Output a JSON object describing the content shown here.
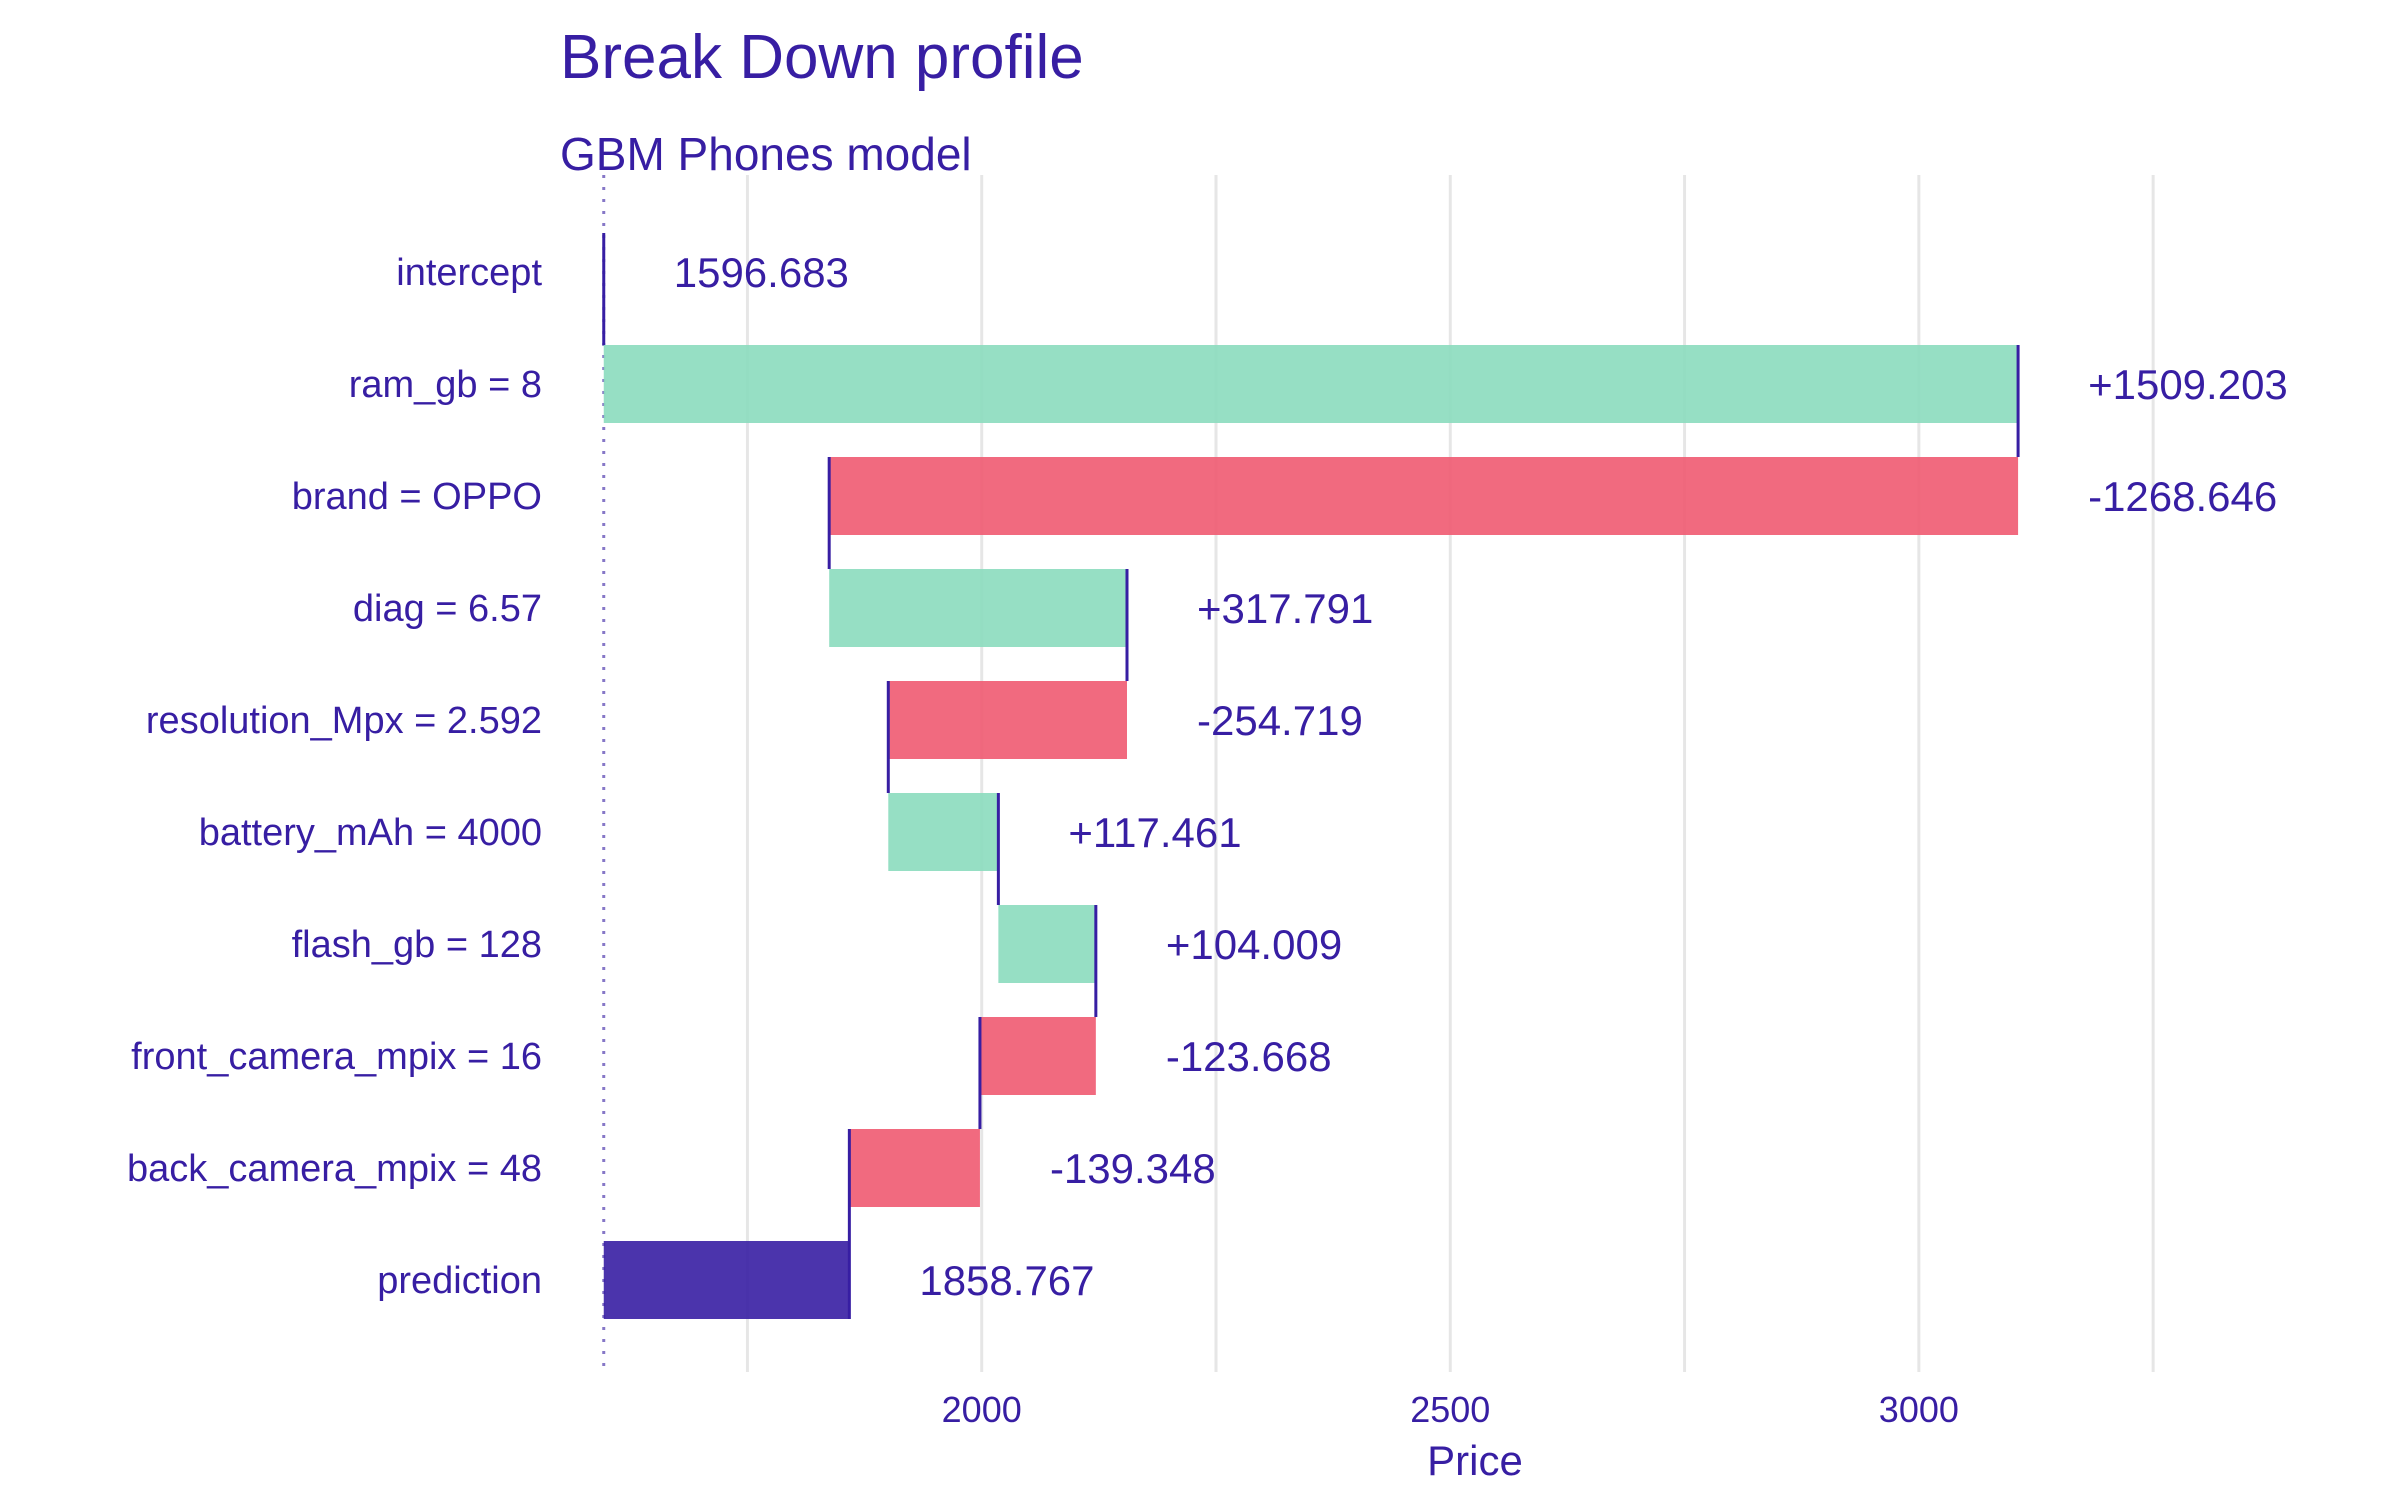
{
  "chart_data": {
    "type": "bar",
    "title": "Break Down profile",
    "subtitle": "GBM Phones model",
    "xlabel": "Price",
    "xlim": [
      1550,
      3300
    ],
    "xticks": [
      2000,
      2500,
      3000
    ],
    "grid": true,
    "colors": {
      "positive": "#8bdcbe",
      "negative": "#f05a71",
      "prediction": "#371ea3",
      "text": "#371ea3",
      "connector": "#371ea3"
    },
    "rows": [
      {
        "label": "intercept",
        "kind": "intercept",
        "start": 1596.683,
        "end": 1596.683,
        "value_label": "1596.683"
      },
      {
        "label": "ram_gb = 8",
        "kind": "positive",
        "start": 1596.683,
        "end": 3105.886,
        "value_label": "+1509.203"
      },
      {
        "label": "brand = OPPO",
        "kind": "negative",
        "start": 3105.886,
        "end": 1837.24,
        "value_label": "-1268.646"
      },
      {
        "label": "diag = 6.57",
        "kind": "positive",
        "start": 1837.24,
        "end": 2155.031,
        "value_label": "+317.791"
      },
      {
        "label": "resolution_Mpx = 2.592",
        "kind": "negative",
        "start": 2155.031,
        "end": 1900.312,
        "value_label": "-254.719"
      },
      {
        "label": "battery_mAh = 4000",
        "kind": "positive",
        "start": 1900.312,
        "end": 2017.773,
        "value_label": "+117.461"
      },
      {
        "label": "flash_gb = 128",
        "kind": "positive",
        "start": 2017.773,
        "end": 2121.782,
        "value_label": "+104.009"
      },
      {
        "label": "front_camera_mpix = 16",
        "kind": "negative",
        "start": 2121.782,
        "end": 1998.114,
        "value_label": "-123.668"
      },
      {
        "label": "back_camera_mpix = 48",
        "kind": "negative",
        "start": 1998.114,
        "end": 1858.767,
        "value_label": "-139.348"
      },
      {
        "label": "prediction",
        "kind": "prediction",
        "start": 1596.683,
        "end": 1858.767,
        "value_label": "1858.767"
      }
    ]
  }
}
